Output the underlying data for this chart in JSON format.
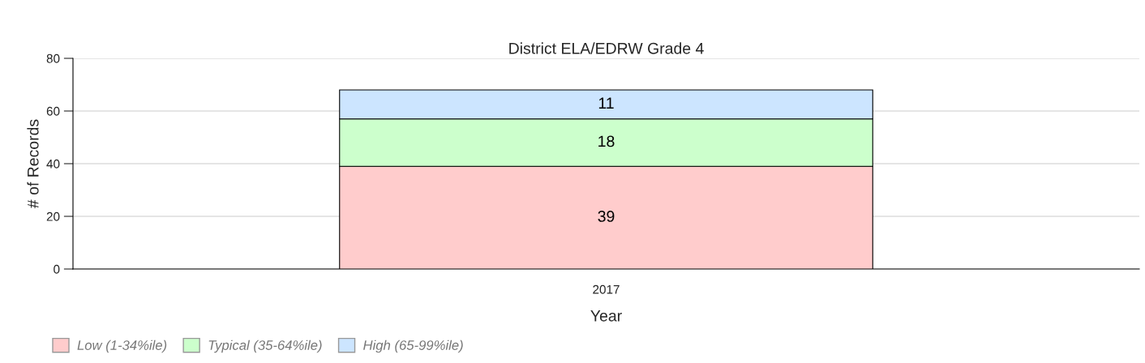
{
  "chart_data": {
    "type": "bar",
    "title": "District ELA/EDRW Grade 4",
    "xlabel": "Year",
    "ylabel": "# of Records",
    "categories": [
      "2017"
    ],
    "series": [
      {
        "name": "Low (1-34%ile)",
        "color": "#ffcccc",
        "values": [
          39
        ]
      },
      {
        "name": "Typical (35-64%ile)",
        "color": "#ccffcc",
        "values": [
          18
        ]
      },
      {
        "name": "High (65-99%ile)",
        "color": "#cce5ff",
        "values": [
          11
        ]
      }
    ],
    "stacked": true,
    "data_labels": true,
    "ylim": [
      0,
      80
    ],
    "yticks": [
      0,
      20,
      40,
      60,
      80
    ],
    "grid": "y",
    "legend": "bottom left"
  }
}
